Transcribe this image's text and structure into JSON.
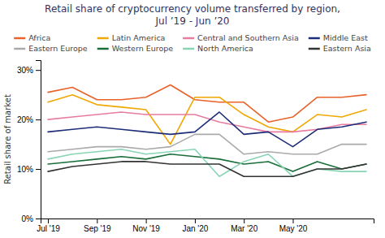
{
  "chart_data": {
    "type": "line",
    "title": "Retail share of cryptocurrency volume transferred by region,\nJul ’19 - Jun ’20",
    "y_label": "Retail share of market",
    "categories": [
      "Jul '19",
      null,
      "Sep '19",
      null,
      "Nov '19",
      null,
      "Jan '20",
      null,
      "Mar '20",
      null,
      "May '20",
      null,
      null,
      null
    ],
    "series": [
      {
        "name": "Africa",
        "color": "#e8622a",
        "values": [
          25.5,
          26.5,
          24.0,
          24.0,
          24.5,
          27.0,
          24.0,
          23.5,
          23.5,
          19.5,
          20.5,
          24.5,
          24.5,
          25.0
        ]
      },
      {
        "name": "Latin America",
        "color": "#f0a800",
        "values": [
          23.5,
          25.0,
          23.0,
          22.5,
          22.0,
          15.0,
          24.5,
          24.5,
          21.0,
          18.5,
          17.5,
          21.0,
          20.5,
          22.0
        ]
      },
      {
        "name": "Central and Southern Asia",
        "color": "#e87ca0",
        "values": [
          20.0,
          20.5,
          21.0,
          21.5,
          21.0,
          21.0,
          21.0,
          19.5,
          18.5,
          17.5,
          17.5,
          18.0,
          19.0,
          19.0
        ]
      },
      {
        "name": "Middle East",
        "color": "#1e2d78",
        "values": [
          17.5,
          18.0,
          18.5,
          18.0,
          17.5,
          17.0,
          17.5,
          21.5,
          17.0,
          17.5,
          14.5,
          18.0,
          18.5,
          19.5
        ]
      },
      {
        "name": "Eastern Europe",
        "color": "#aaaaaa",
        "values": [
          13.5,
          14.0,
          14.5,
          14.5,
          14.0,
          14.5,
          17.0,
          17.0,
          13.0,
          13.5,
          13.0,
          13.0,
          15.0,
          15.0
        ]
      },
      {
        "name": "Western Europe",
        "color": "#1a6e3a",
        "values": [
          11.0,
          11.5,
          12.0,
          12.5,
          12.0,
          13.0,
          12.5,
          12.0,
          11.0,
          11.5,
          9.5,
          11.5,
          10.0,
          11.0
        ]
      },
      {
        "name": "North America",
        "color": "#88d5b5",
        "values": [
          12.0,
          13.0,
          13.5,
          14.0,
          13.0,
          13.5,
          14.0,
          8.5,
          11.5,
          13.0,
          8.5,
          10.0,
          9.5,
          9.5
        ]
      },
      {
        "name": "Eastern Asia",
        "color": "#333333",
        "values": [
          9.5,
          10.5,
          11.0,
          11.5,
          11.5,
          11.0,
          11.0,
          11.0,
          8.5,
          8.5,
          8.5,
          10.0,
          10.0,
          11.0
        ]
      }
    ],
    "ylim": [
      0,
      32
    ],
    "yticks": [
      {
        "value": 0,
        "label": "0%"
      },
      {
        "value": 10,
        "label": "10%"
      },
      {
        "value": 20,
        "label": "20%"
      },
      {
        "value": 30,
        "label": "30%"
      }
    ],
    "grid": false,
    "legend": "top"
  }
}
